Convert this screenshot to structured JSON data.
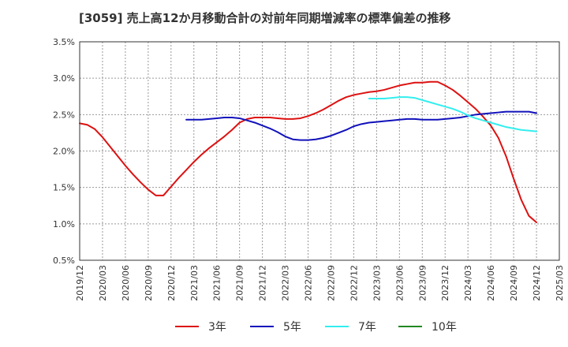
{
  "chart_data": {
    "type": "line",
    "title": "[3059]  売上高12か月移動合計の対前年同期増減率の標準偏差の推移",
    "xlabel": "",
    "ylabel": "",
    "ylim": [
      0.5,
      3.5
    ],
    "yticks": [
      0.5,
      1.0,
      1.5,
      2.0,
      2.5,
      3.0,
      3.5
    ],
    "ytick_labels": [
      "0.5%",
      "1.0%",
      "1.5%",
      "2.0%",
      "2.5%",
      "3.0%",
      "3.5%"
    ],
    "xticks": [
      "2019/12",
      "2020/03",
      "2020/06",
      "2020/09",
      "2020/12",
      "2021/03",
      "2021/06",
      "2021/09",
      "2021/12",
      "2022/03",
      "2022/06",
      "2022/09",
      "2022/12",
      "2023/03",
      "2023/06",
      "2023/09",
      "2023/12",
      "2024/03",
      "2024/06",
      "2024/09",
      "2024/12",
      "2025/03"
    ],
    "grid": true,
    "legend_position": "bottom",
    "series": [
      {
        "name": "3年",
        "color": "#dd1111",
        "points": [
          [
            "2019/12",
            2.38
          ],
          [
            "2020/01",
            2.36
          ],
          [
            "2020/02",
            2.3
          ],
          [
            "2020/03",
            2.19
          ],
          [
            "2020/04",
            2.06
          ],
          [
            "2020/05",
            1.93
          ],
          [
            "2020/06",
            1.8
          ],
          [
            "2020/07",
            1.68
          ],
          [
            "2020/08",
            1.57
          ],
          [
            "2020/09",
            1.47
          ],
          [
            "2020/10",
            1.39
          ],
          [
            "2020/11",
            1.39
          ],
          [
            "2020/12",
            1.51
          ],
          [
            "2021/01",
            1.63
          ],
          [
            "2021/02",
            1.74
          ],
          [
            "2021/03",
            1.85
          ],
          [
            "2021/04",
            1.95
          ],
          [
            "2021/05",
            2.04
          ],
          [
            "2021/06",
            2.12
          ],
          [
            "2021/07",
            2.2
          ],
          [
            "2021/08",
            2.29
          ],
          [
            "2021/09",
            2.39
          ],
          [
            "2021/10",
            2.44
          ],
          [
            "2021/11",
            2.46
          ],
          [
            "2021/12",
            2.46
          ],
          [
            "2022/01",
            2.46
          ],
          [
            "2022/02",
            2.45
          ],
          [
            "2022/03",
            2.44
          ],
          [
            "2022/04",
            2.44
          ],
          [
            "2022/05",
            2.45
          ],
          [
            "2022/06",
            2.48
          ],
          [
            "2022/07",
            2.52
          ],
          [
            "2022/08",
            2.57
          ],
          [
            "2022/09",
            2.63
          ],
          [
            "2022/10",
            2.69
          ],
          [
            "2022/11",
            2.74
          ],
          [
            "2022/12",
            2.77
          ],
          [
            "2023/01",
            2.79
          ],
          [
            "2023/02",
            2.81
          ],
          [
            "2023/03",
            2.82
          ],
          [
            "2023/04",
            2.84
          ],
          [
            "2023/05",
            2.87
          ],
          [
            "2023/06",
            2.9
          ],
          [
            "2023/07",
            2.92
          ],
          [
            "2023/08",
            2.94
          ],
          [
            "2023/09",
            2.94
          ],
          [
            "2023/10",
            2.95
          ],
          [
            "2023/11",
            2.95
          ],
          [
            "2023/12",
            2.9
          ],
          [
            "2024/01",
            2.84
          ],
          [
            "2024/02",
            2.76
          ],
          [
            "2024/03",
            2.67
          ],
          [
            "2024/04",
            2.58
          ],
          [
            "2024/05",
            2.47
          ],
          [
            "2024/06",
            2.35
          ],
          [
            "2024/07",
            2.18
          ],
          [
            "2024/08",
            1.93
          ],
          [
            "2024/09",
            1.62
          ],
          [
            "2024/10",
            1.33
          ],
          [
            "2024/11",
            1.11
          ],
          [
            "2024/12",
            1.02
          ]
        ]
      },
      {
        "name": "5年",
        "color": "#1111bb",
        "points": [
          [
            "2021/02",
            2.43
          ],
          [
            "2021/03",
            2.43
          ],
          [
            "2021/04",
            2.43
          ],
          [
            "2021/05",
            2.44
          ],
          [
            "2021/06",
            2.45
          ],
          [
            "2021/07",
            2.46
          ],
          [
            "2021/08",
            2.46
          ],
          [
            "2021/09",
            2.45
          ],
          [
            "2021/10",
            2.42
          ],
          [
            "2021/11",
            2.39
          ],
          [
            "2021/12",
            2.35
          ],
          [
            "2022/01",
            2.31
          ],
          [
            "2022/02",
            2.26
          ],
          [
            "2022/03",
            2.2
          ],
          [
            "2022/04",
            2.16
          ],
          [
            "2022/05",
            2.15
          ],
          [
            "2022/06",
            2.15
          ],
          [
            "2022/07",
            2.16
          ],
          [
            "2022/08",
            2.18
          ],
          [
            "2022/09",
            2.21
          ],
          [
            "2022/10",
            2.25
          ],
          [
            "2022/11",
            2.29
          ],
          [
            "2022/12",
            2.34
          ],
          [
            "2023/01",
            2.37
          ],
          [
            "2023/02",
            2.39
          ],
          [
            "2023/03",
            2.4
          ],
          [
            "2023/04",
            2.41
          ],
          [
            "2023/05",
            2.42
          ],
          [
            "2023/06",
            2.43
          ],
          [
            "2023/07",
            2.44
          ],
          [
            "2023/08",
            2.44
          ],
          [
            "2023/09",
            2.43
          ],
          [
            "2023/10",
            2.43
          ],
          [
            "2023/11",
            2.43
          ],
          [
            "2023/12",
            2.44
          ],
          [
            "2024/01",
            2.45
          ],
          [
            "2024/02",
            2.46
          ],
          [
            "2024/03",
            2.48
          ],
          [
            "2024/04",
            2.5
          ],
          [
            "2024/05",
            2.51
          ],
          [
            "2024/06",
            2.52
          ],
          [
            "2024/07",
            2.53
          ],
          [
            "2024/08",
            2.54
          ],
          [
            "2024/09",
            2.54
          ],
          [
            "2024/10",
            2.54
          ],
          [
            "2024/11",
            2.54
          ],
          [
            "2024/12",
            2.52
          ]
        ]
      },
      {
        "name": "7年",
        "color": "#33eeee",
        "points": [
          [
            "2023/02",
            2.72
          ],
          [
            "2023/03",
            2.72
          ],
          [
            "2023/04",
            2.72
          ],
          [
            "2023/05",
            2.73
          ],
          [
            "2023/06",
            2.74
          ],
          [
            "2023/07",
            2.74
          ],
          [
            "2023/08",
            2.73
          ],
          [
            "2023/09",
            2.7
          ],
          [
            "2023/10",
            2.67
          ],
          [
            "2023/11",
            2.64
          ],
          [
            "2023/12",
            2.61
          ],
          [
            "2024/01",
            2.58
          ],
          [
            "2024/02",
            2.54
          ],
          [
            "2024/03",
            2.49
          ],
          [
            "2024/04",
            2.45
          ],
          [
            "2024/05",
            2.42
          ],
          [
            "2024/06",
            2.39
          ],
          [
            "2024/07",
            2.36
          ],
          [
            "2024/08",
            2.33
          ],
          [
            "2024/09",
            2.31
          ],
          [
            "2024/10",
            2.29
          ],
          [
            "2024/11",
            2.28
          ],
          [
            "2024/12",
            2.27
          ]
        ]
      },
      {
        "name": "10年",
        "color": "#228822",
        "points": []
      }
    ]
  }
}
